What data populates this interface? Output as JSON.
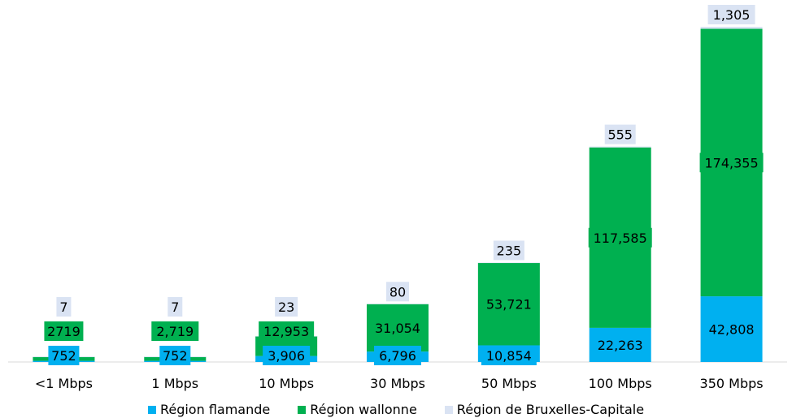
{
  "chart_data": {
    "type": "bar",
    "stacked": true,
    "categories": [
      "<1 Mbps",
      "1 Mbps",
      "10 Mbps",
      "30 Mbps",
      "50 Mbps",
      "100 Mbps",
      "350 Mbps"
    ],
    "series": [
      {
        "name": "Région flamande",
        "color": "#00b0f0",
        "values": [
          752,
          752,
          3906,
          6796,
          10854,
          22263,
          42808
        ],
        "labels": [
          "752",
          "752",
          "3,906",
          "6,796",
          "10,854",
          "22,263",
          "42,808"
        ]
      },
      {
        "name": "Région wallonne",
        "color": "#00b050",
        "values": [
          2719,
          2719,
          12953,
          31054,
          53721,
          117585,
          174355
        ],
        "labels": [
          "2719",
          "2,719",
          "12,953",
          "31,054",
          "53,721",
          "117,585",
          "174,355"
        ]
      },
      {
        "name": "Région de Bruxelles-Capitale",
        "color": "#dae3f3",
        "values": [
          7,
          7,
          23,
          80,
          235,
          555,
          1305
        ],
        "labels": [
          "7",
          "7",
          "23",
          "80",
          "235",
          "555",
          "1,305"
        ]
      }
    ],
    "legend": "bottom",
    "grid": false
  }
}
